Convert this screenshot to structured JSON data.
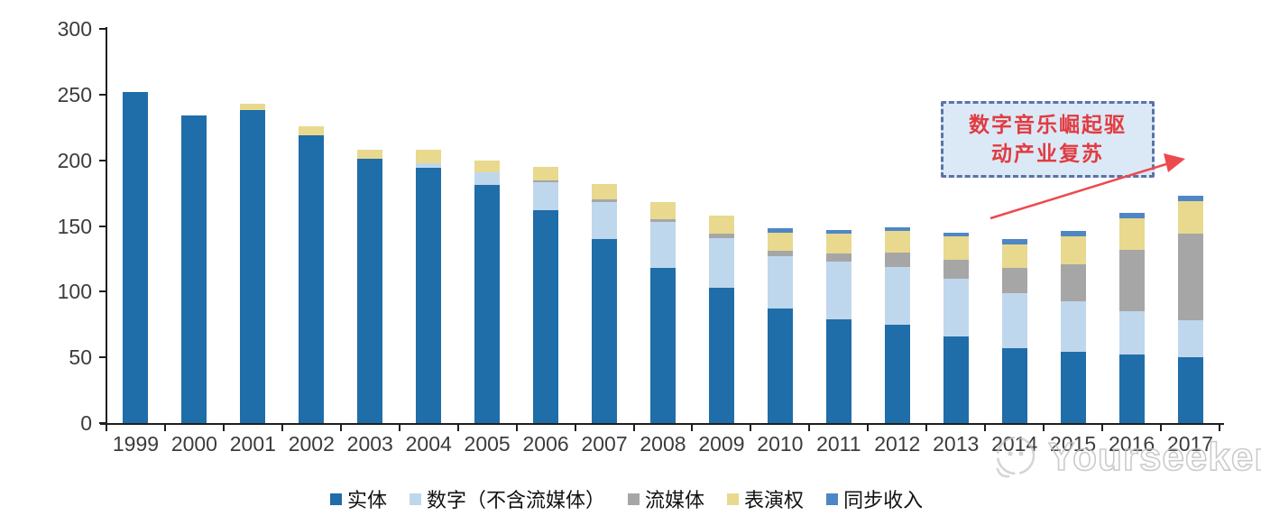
{
  "chart_data": {
    "type": "bar",
    "stacked": true,
    "title": "",
    "xlabel": "",
    "ylabel": "",
    "ylim": [
      0,
      300
    ],
    "yticks": [
      0,
      50,
      100,
      150,
      200,
      250,
      300
    ],
    "grid": false,
    "legend_position": "bottom",
    "categories": [
      "1999",
      "2000",
      "2001",
      "2002",
      "2003",
      "2004",
      "2005",
      "2006",
      "2007",
      "2008",
      "2009",
      "2010",
      "2011",
      "2012",
      "2013",
      "2014",
      "2015",
      "2016",
      "2017"
    ],
    "series": [
      {
        "name": "实体",
        "color": "#1F6DA9",
        "values": [
          252,
          234,
          238,
          219,
          201,
          194,
          181,
          162,
          140,
          118,
          103,
          87,
          79,
          75,
          66,
          57,
          54,
          52,
          50
        ]
      },
      {
        "name": "数字（不含流媒体）",
        "color": "#BFD7EC",
        "values": [
          0,
          0,
          0,
          0,
          0,
          4,
          10,
          21,
          28,
          35,
          38,
          40,
          44,
          44,
          44,
          42,
          39,
          33,
          28
        ]
      },
      {
        "name": "流媒体",
        "color": "#A6A6A6",
        "values": [
          0,
          0,
          0,
          0,
          0,
          0,
          0,
          2,
          2,
          2,
          3,
          4,
          6,
          11,
          14,
          19,
          28,
          47,
          66
        ]
      },
      {
        "name": "表演权",
        "color": "#E8D98F",
        "values": [
          0,
          0,
          5,
          7,
          7,
          10,
          9,
          10,
          12,
          13,
          14,
          14,
          15,
          16,
          18,
          18,
          21,
          24,
          25
        ]
      },
      {
        "name": "同步收入",
        "color": "#4F87C5",
        "values": [
          0,
          0,
          0,
          0,
          0,
          0,
          0,
          0,
          0,
          0,
          0,
          3,
          3,
          3,
          3,
          4,
          4,
          4,
          4
        ]
      }
    ]
  },
  "annotation": {
    "lines": [
      "数字音乐崛起驱",
      "动产业复苏"
    ],
    "box_fill": "#dbe9f6",
    "border_color": "#5b73a8",
    "text_color": "#e23b41",
    "arrow_color": "#ed4a4e"
  },
  "watermark": {
    "text": "Yourseeker"
  },
  "axis": {
    "line_color": "#1f1f1f",
    "label_color": "#3c3c3c"
  }
}
